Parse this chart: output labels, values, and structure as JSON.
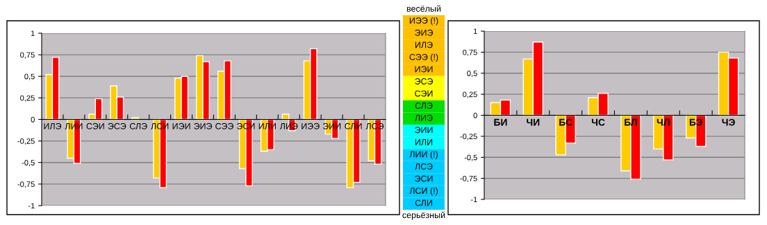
{
  "chart_data": [
    {
      "type": "bar",
      "categories": [
        "ИЛЭ",
        "ЛИИ",
        "СЭИ",
        "ЭСЭ",
        "СЛЭ",
        "ЛСИ",
        "ИЭИ",
        "ЭИЭ",
        "СЭЭ",
        "ЭСИ",
        "ИЛИ",
        "ЛИЭ",
        "ИЭЭ",
        "ЭИИ",
        "СЛИ",
        "ЛСЭ"
      ],
      "series": [
        {
          "color": "#ffcc00",
          "values": [
            0.52,
            -0.45,
            0.06,
            0.39,
            0.02,
            -0.68,
            0.48,
            0.74,
            0.56,
            -0.57,
            -0.37,
            0.06,
            0.68,
            -0.17,
            -0.79,
            -0.48
          ]
        },
        {
          "color": "#ff0000",
          "values": [
            0.72,
            -0.51,
            0.24,
            0.26,
            null,
            -0.79,
            0.5,
            0.67,
            0.68,
            -0.77,
            -0.35,
            -0.13,
            0.82,
            -0.22,
            -0.73,
            -0.52
          ]
        }
      ],
      "ylim": [
        -1,
        1
      ],
      "yticks": [
        {
          "value": -1,
          "label": "-1"
        },
        {
          "value": -0.75,
          "label": "-0,75"
        },
        {
          "value": -0.5,
          "label": "-0,5"
        },
        {
          "value": -0.25,
          "label": "-0,25"
        },
        {
          "value": 0,
          "label": "0"
        },
        {
          "value": 0.25,
          "label": "0,25"
        },
        {
          "value": 0.5,
          "label": "0,5"
        },
        {
          "value": 0.75,
          "label": "0,75"
        },
        {
          "value": 1,
          "label": "1"
        }
      ],
      "grid": "y",
      "legend": false
    },
    {
      "type": "other",
      "title": "весёлый",
      "annotations": [
        "серьёзный"
      ],
      "categories": [
        "ИЭЭ (!)",
        "ЭИЭ",
        "ИЛЭ",
        "СЭЭ (!)",
        "ИЭИ",
        "ЭСЭ",
        "СЭИ",
        "СЛЭ",
        "ЛИЭ",
        "ЭИИ",
        "ИЛИ",
        "ЛИИ (!)",
        "ЛСЭ",
        "ЭСИ",
        "ЛСИ (!)",
        "СЛИ"
      ],
      "colors": [
        "#ffc000",
        "#ffc000",
        "#ffc000",
        "#ffc000",
        "#ffc000",
        "#ffff00",
        "#ffff00",
        "#00dd00",
        "#00dd00",
        "#00ffff",
        "#00ffff",
        "#00ccff",
        "#00ccff",
        "#00ccff",
        "#00ccff",
        "#00ccff"
      ]
    },
    {
      "type": "bar",
      "categories": [
        "БИ",
        "ЧИ",
        "БС",
        "ЧС",
        "БЛ",
        "ЧЛ",
        "БЭ",
        "ЧЭ"
      ],
      "series": [
        {
          "color": "#ffcc00",
          "values": [
            0.15,
            0.67,
            -0.47,
            0.21,
            -0.66,
            -0.4,
            -0.27,
            0.75
          ]
        },
        {
          "color": "#ff0000",
          "values": [
            0.18,
            0.87,
            -0.33,
            0.26,
            -0.76,
            -0.53,
            -0.37,
            0.68
          ]
        }
      ],
      "ylim": [
        -1,
        1
      ],
      "yticks": [
        {
          "value": -1,
          "label": "-1"
        },
        {
          "value": -0.75,
          "label": "-0,75"
        },
        {
          "value": -0.5,
          "label": "-0,5"
        },
        {
          "value": -0.25,
          "label": "-0,25"
        },
        {
          "value": 0,
          "label": "0"
        },
        {
          "value": 0.25,
          "label": "0,25"
        },
        {
          "value": 0.5,
          "label": "0,5"
        },
        {
          "value": 0.75,
          "label": "0,75"
        },
        {
          "value": 1,
          "label": "1"
        }
      ],
      "grid": "y",
      "legend": false
    }
  ]
}
